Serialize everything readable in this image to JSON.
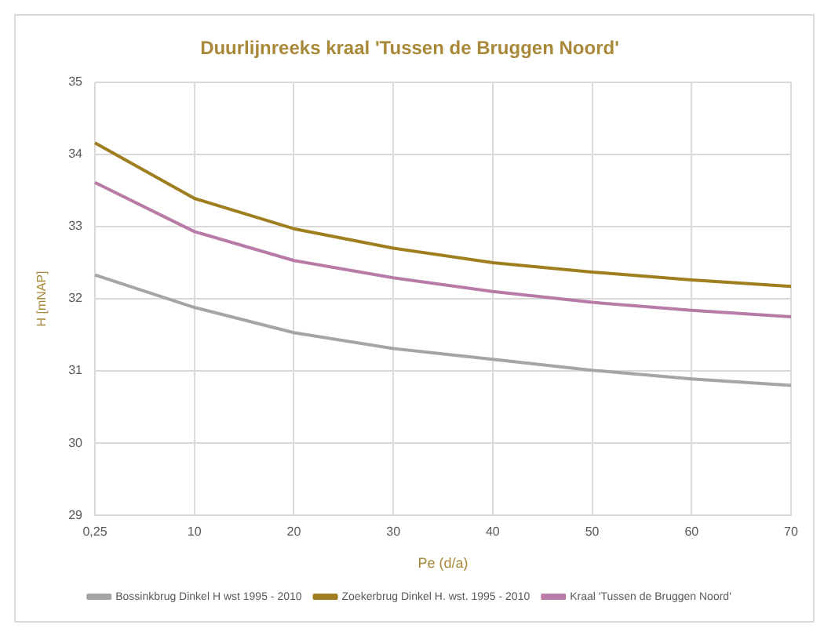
{
  "chart_data": {
    "type": "line",
    "title": "Duurlijnreeks kraal 'Tussen de Bruggen Noord'",
    "xlabel": "Pe (d/a)",
    "ylabel": "H [mNAP]",
    "categories": [
      "0,25",
      "10",
      "20",
      "30",
      "40",
      "50",
      "60",
      "70"
    ],
    "series": [
      {
        "name": "Bossinkbrug Dinkel H wst 1995 - 2010",
        "color": "#a5a5a5",
        "values": [
          32.33,
          31.88,
          31.53,
          31.31,
          31.16,
          31.01,
          30.89,
          30.8
        ]
      },
      {
        "name": "Zoekerbrug Dinkel H. wst. 1995 - 2010",
        "color": "#9e7e1e",
        "values": [
          34.16,
          33.39,
          32.97,
          32.7,
          32.5,
          32.37,
          32.26,
          32.17
        ]
      },
      {
        "name": "Kraal 'Tussen de Bruggen Noord'",
        "color": "#b87aa6",
        "values": [
          33.61,
          32.93,
          32.53,
          32.29,
          32.1,
          31.95,
          31.84,
          31.75
        ]
      }
    ],
    "ylim": [
      29,
      35
    ],
    "yticks": [
      29,
      30,
      31,
      32,
      33,
      34,
      35
    ],
    "grid": true,
    "legend": "bottom",
    "marker": "none",
    "line_style": "solid"
  }
}
